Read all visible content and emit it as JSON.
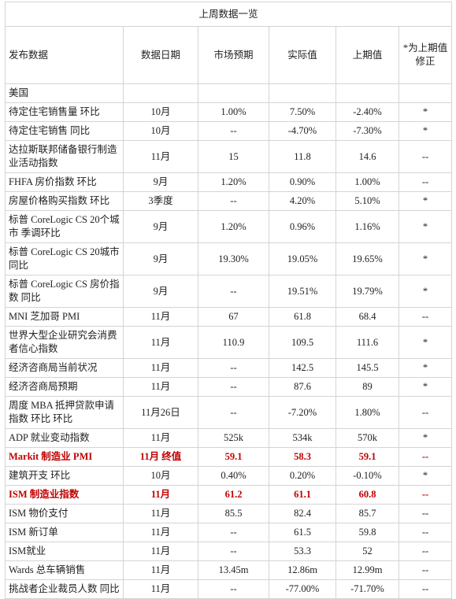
{
  "table": {
    "title": "上周数据一览",
    "columns": [
      "发布数据",
      "数据日期",
      "市场预期",
      "实际值",
      "上期值",
      "*为上期值修正"
    ],
    "section": "美国",
    "emphasis_color": "#c00000",
    "rows": [
      {
        "cells": [
          "待定住宅销售量 环比",
          "10月",
          "1.00%",
          "7.50%",
          "-2.40%",
          "*"
        ]
      },
      {
        "cells": [
          "待定住宅销售 同比",
          "10月",
          "--",
          "-4.70%",
          "-7.30%",
          "*"
        ]
      },
      {
        "cells": [
          "达拉斯联邦储备银行制造业活动指数",
          "11月",
          "15",
          "11.8",
          "14.6",
          "--"
        ]
      },
      {
        "cells": [
          "FHFA 房价指数 环比",
          "9月",
          "1.20%",
          "0.90%",
          "1.00%",
          "--"
        ]
      },
      {
        "cells": [
          "房屋价格购买指数 环比",
          "3季度",
          "--",
          "4.20%",
          "5.10%",
          "*"
        ]
      },
      {
        "cells": [
          "标普 CoreLogic CS 20个城市 季调环比",
          "9月",
          "1.20%",
          "0.96%",
          "1.16%",
          "*"
        ]
      },
      {
        "cells": [
          "标普 CoreLogic CS 20城市同比",
          "9月",
          "19.30%",
          "19.05%",
          "19.65%",
          "*"
        ]
      },
      {
        "cells": [
          "标普 CoreLogic CS 房价指数 同比",
          "9月",
          "--",
          "19.51%",
          "19.79%",
          "*"
        ]
      },
      {
        "cells": [
          "MNI 芝加哥 PMI",
          "11月",
          "67",
          "61.8",
          "68.4",
          "--"
        ]
      },
      {
        "cells": [
          "世界大型企业研究会消费者信心指数",
          "11月",
          "110.9",
          "109.5",
          "111.6",
          "*"
        ]
      },
      {
        "cells": [
          "经济咨商局当前状况",
          "11月",
          "--",
          "142.5",
          "145.5",
          "*"
        ]
      },
      {
        "cells": [
          "经济咨商局预期",
          "11月",
          "--",
          "87.6",
          "89",
          "*"
        ]
      },
      {
        "cells": [
          "周度 MBA 抵押贷款申请指数 环比 环比",
          "11月26日",
          "--",
          "-7.20%",
          "1.80%",
          "--"
        ]
      },
      {
        "cells": [
          "ADP 就业变动指数",
          "11月",
          "525k",
          "534k",
          "570k",
          "*"
        ]
      },
      {
        "cells": [
          "Markit 制造业 PMI",
          "11月 终值",
          "59.1",
          "58.3",
          "59.1",
          "--"
        ],
        "emphasis": true
      },
      {
        "cells": [
          "建筑开支 环比",
          "10月",
          "0.40%",
          "0.20%",
          "-0.10%",
          "*"
        ]
      },
      {
        "cells": [
          "ISM 制造业指数",
          "11月",
          "61.2",
          "61.1",
          "60.8",
          "--"
        ],
        "emphasis": true
      },
      {
        "cells": [
          "ISM 物价支付",
          "11月",
          "85.5",
          "82.4",
          "85.7",
          "--"
        ]
      },
      {
        "cells": [
          "ISM 新订单",
          "11月",
          "--",
          "61.5",
          "59.8",
          "--"
        ]
      },
      {
        "cells": [
          "ISM就业",
          "11月",
          "--",
          "53.3",
          "52",
          "--"
        ]
      },
      {
        "cells": [
          "Wards 总车辆销售",
          "11月",
          "13.45m",
          "12.86m",
          "12.99m",
          "--"
        ]
      },
      {
        "cells": [
          "挑战者企业裁员人数 同比",
          "11月",
          "--",
          "-77.00%",
          "-71.70%",
          "--"
        ]
      }
    ]
  }
}
